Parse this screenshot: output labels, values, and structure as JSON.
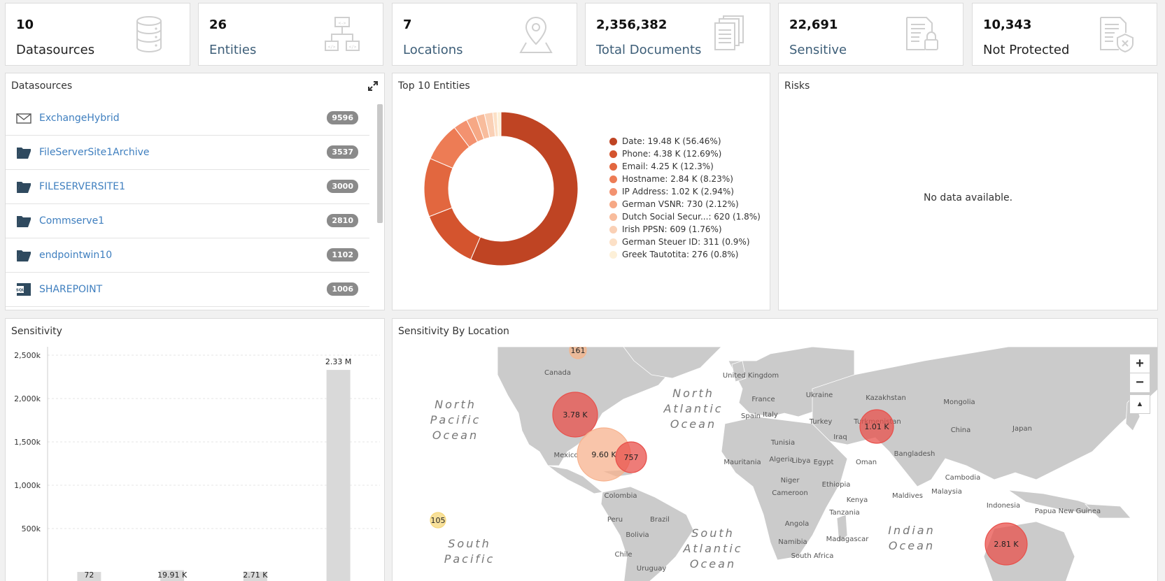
{
  "kpis": [
    {
      "value": "10",
      "label": "Datasources",
      "icon": "database-icon"
    },
    {
      "value": "26",
      "label": "Entities",
      "icon": "entities-icon"
    },
    {
      "value": "7",
      "label": "Locations",
      "icon": "location-pin-icon"
    },
    {
      "value": "2,356,382",
      "label": "Total Documents",
      "icon": "documents-icon"
    },
    {
      "value": "22,691",
      "label": "Sensitive",
      "icon": "locked-document-icon"
    },
    {
      "value": "10,343",
      "label": "Not Protected",
      "icon": "unprotected-document-icon"
    }
  ],
  "datasources": {
    "title": "Datasources",
    "items": [
      {
        "name": "ExchangeHybrid",
        "count": "9596",
        "icon": "mail-icon"
      },
      {
        "name": "FileServerSite1Archive",
        "count": "3537",
        "icon": "folder-icon"
      },
      {
        "name": "FILESERVERSITE1",
        "count": "3000",
        "icon": "folder-icon"
      },
      {
        "name": "Commserve1",
        "count": "2810",
        "icon": "folder-icon"
      },
      {
        "name": "endpointwin10",
        "count": "1102",
        "icon": "folder-icon"
      },
      {
        "name": "SHAREPOINT",
        "count": "1006",
        "icon": "sharepoint-icon"
      }
    ]
  },
  "top_entities": {
    "title": "Top 10 Entities"
  },
  "risks": {
    "title": "Risks",
    "empty_text": "No data available."
  },
  "sensitivity_by_location": {
    "title": "Sensitivity By Location",
    "labels": {
      "north_pacific": "North\nPacific\nOcean",
      "north_atlantic": "North\nAtlantic\nOcean",
      "south_pacific": "South\nPacific",
      "south_atlantic": "South\nAtlantic\nOcean",
      "indian": "Indian\nOcean"
    },
    "countries": [
      "Canada",
      "Mexico",
      "Colombia",
      "Peru",
      "Brazil",
      "Bolivia",
      "Chile",
      "Uruguay",
      "United Kingdom",
      "France",
      "Spain",
      "Italy",
      "Ukraine",
      "Kazakhstan",
      "Mongolia",
      "China",
      "Japan",
      "Turkey",
      "Turkmenistan",
      "Iraq",
      "Tunisia",
      "Algeria",
      "Libya",
      "Egypt",
      "Oman",
      "Mauritania",
      "Niger",
      "Ethiopia",
      "Bangladesh",
      "Cambodia",
      "Malaysia",
      "Indonesia",
      "Papua New Guinea",
      "Maldives",
      "Cameroon",
      "Kenya",
      "Tanzania",
      "Angola",
      "Namibia",
      "Madagascar",
      "South Africa"
    ],
    "bubbles": [
      {
        "label": "161",
        "color": "#f4b48a"
      },
      {
        "label": "3.78 K",
        "color": "#e8504b"
      },
      {
        "label": "9.60 K",
        "color": "#f7b28d"
      },
      {
        "label": "757",
        "color": "#e8504b"
      },
      {
        "label": "1.01 K",
        "color": "#e8504b"
      },
      {
        "label": "105",
        "color": "#f5d77a"
      },
      {
        "label": "2.81 K",
        "color": "#e8504b"
      }
    ],
    "zoom_in": "+",
    "zoom_out": "−",
    "reset": "▲"
  },
  "chart_data": [
    {
      "type": "pie",
      "title": "Top 10 Entities",
      "donut": true,
      "legend_position": "right",
      "series": [
        {
          "name": "Date",
          "value": 19480,
          "label": "Date: 19.48 K (56.46%)",
          "percent": 56.46,
          "color": "#bf4423"
        },
        {
          "name": "Phone",
          "value": 4380,
          "label": "Phone: 4.38 K (12.69%)",
          "percent": 12.69,
          "color": "#d4542e"
        },
        {
          "name": "Email",
          "value": 4250,
          "label": "Email: 4.25 K (12.3%)",
          "percent": 12.3,
          "color": "#e2673f"
        },
        {
          "name": "Hostname",
          "value": 2840,
          "label": "Hostname: 2.84 K (8.23%)",
          "percent": 8.23,
          "color": "#ed7c55"
        },
        {
          "name": "IP Address",
          "value": 1020,
          "label": "IP Address: 1.02 K (2.94%)",
          "percent": 2.94,
          "color": "#f39270"
        },
        {
          "name": "German VSNR",
          "value": 730,
          "label": "German VSNR: 730 (2.12%)",
          "percent": 2.12,
          "color": "#f6a885"
        },
        {
          "name": "Dutch Social Secur...",
          "value": 620,
          "label": "Dutch Social Secur...: 620 (1.8%)",
          "percent": 1.8,
          "color": "#f8bc9c"
        },
        {
          "name": "Irish PPSN",
          "value": 609,
          "label": "Irish PPSN: 609 (1.76%)",
          "percent": 1.76,
          "color": "#fad0b5"
        },
        {
          "name": "German Steuer ID",
          "value": 311,
          "label": "German Steuer ID: 311 (0.9%)",
          "percent": 0.9,
          "color": "#fce0c6"
        },
        {
          "name": "Greek Tautotita",
          "value": 276,
          "label": "Greek Tautotita: 276 (0.8%)",
          "percent": 0.8,
          "color": "#fdf0d8"
        }
      ]
    },
    {
      "type": "bar",
      "title": "Sensitivity",
      "categories": [
        "",
        "",
        "",
        ""
      ],
      "values": [
        72,
        19910,
        2710,
        2330000
      ],
      "data_labels": [
        "72",
        "19.91 K",
        "2.71 K",
        "2.33 M"
      ],
      "ylim": [
        0,
        2500000
      ],
      "yticks": [
        "500k",
        "1,000k",
        "1,500k",
        "2,000k",
        "2,500k"
      ],
      "ytick_values": [
        500000,
        1000000,
        1500000,
        2000000,
        2500000
      ],
      "grid": true,
      "bar_color": "#d9d9d9"
    }
  ]
}
